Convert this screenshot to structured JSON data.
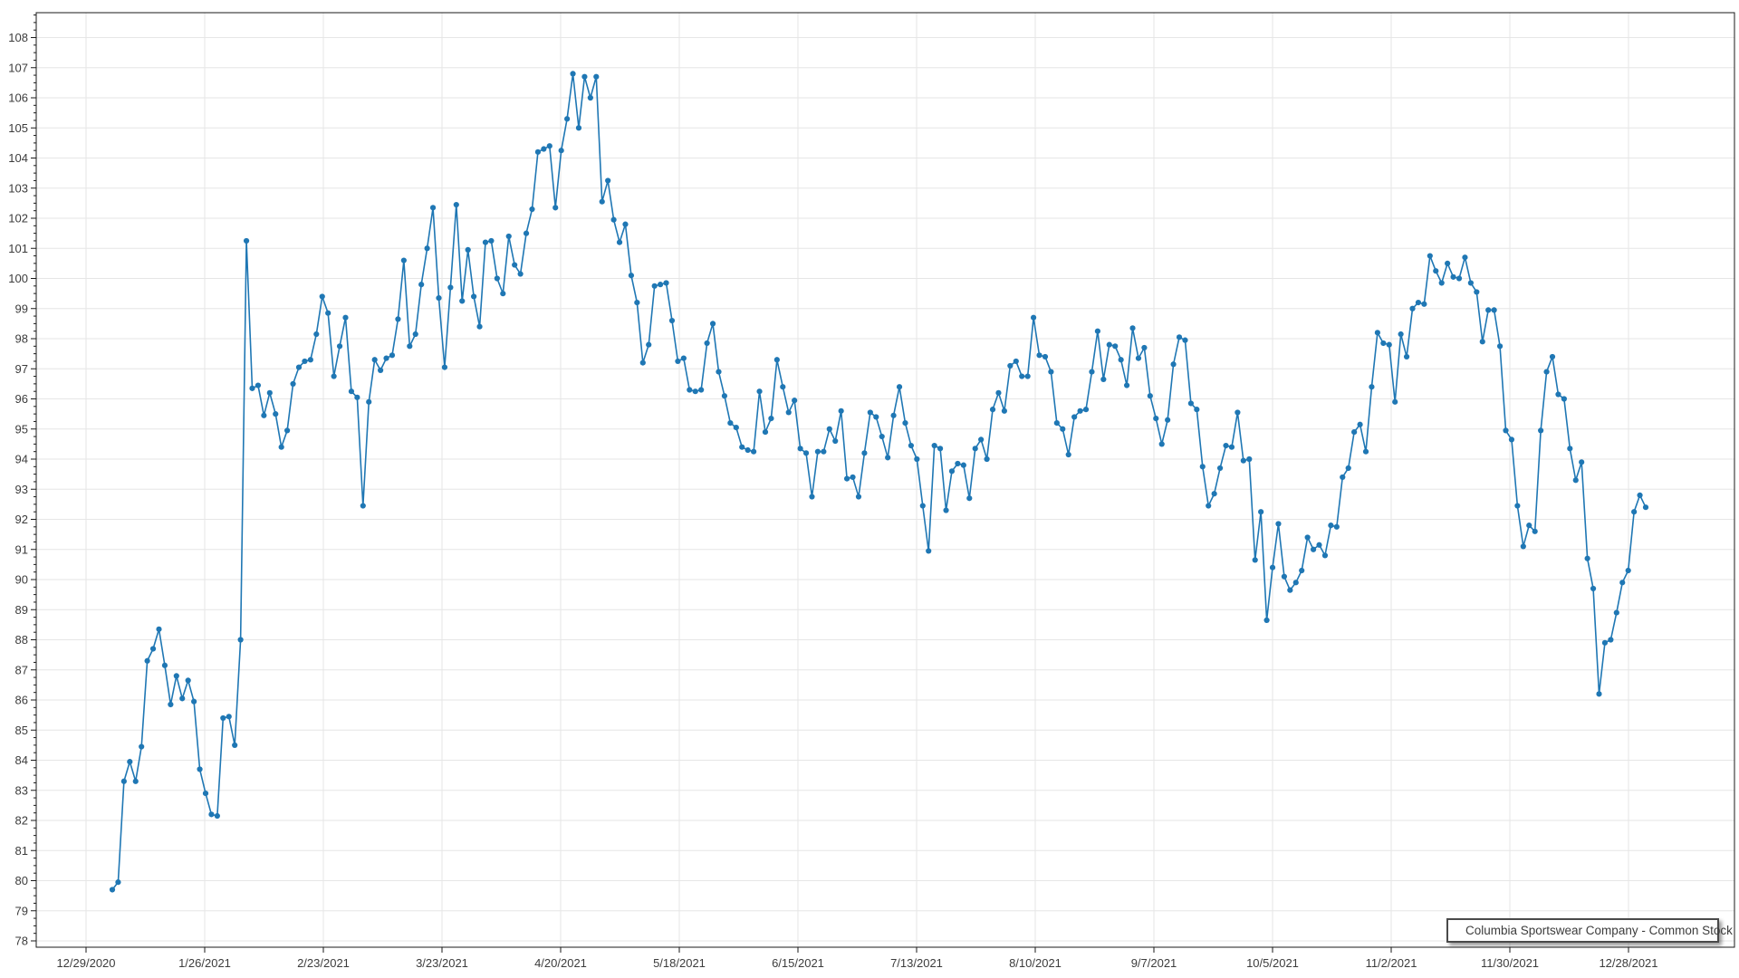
{
  "window": {
    "background": "#ffffff"
  },
  "legend": {
    "position": "bottom-right",
    "border_color": "#4a4a4a",
    "marker": "line-dot"
  },
  "chart_data": {
    "type": "line",
    "title": "",
    "xlabel": "",
    "ylabel": "",
    "grid": true,
    "legend_position": "bottom-right",
    "x_tick_labels": [
      "12/29/2020",
      "1/26/2021",
      "2/23/2021",
      "3/23/2021",
      "4/20/2021",
      "5/18/2021",
      "6/15/2021",
      "7/13/2021",
      "8/10/2021",
      "9/7/2021",
      "10/5/2021",
      "11/2/2021",
      "11/30/2021",
      "12/28/2021"
    ],
    "ylim": [
      78,
      108
    ],
    "y_tick_step": 1,
    "y_minor_tick_step": 0.25,
    "colors": {
      "line": "#1f77b4",
      "marker": "#1f77b4",
      "grid": "#e6e6e6",
      "axis": "#1a1a1a",
      "tick_text": "#3c3c3c"
    },
    "series": [
      {
        "name": "Columbia Sportswear Company - Common Stock",
        "values": [
          79.7,
          79.95,
          83.3,
          83.95,
          83.3,
          84.45,
          87.3,
          87.7,
          88.35,
          87.15,
          85.85,
          86.8,
          86.05,
          86.65,
          85.95,
          83.7,
          82.9,
          82.2,
          82.15,
          85.4,
          85.45,
          84.5,
          88.0,
          101.25,
          96.35,
          96.45,
          95.45,
          96.2,
          95.5,
          94.4,
          94.95,
          96.5,
          97.05,
          97.25,
          97.3,
          98.15,
          99.4,
          98.85,
          96.75,
          97.75,
          98.7,
          96.25,
          96.05,
          92.45,
          95.9,
          97.3,
          96.95,
          97.35,
          97.45,
          98.65,
          100.6,
          97.75,
          98.15,
          99.8,
          101.0,
          102.35,
          99.35,
          97.05,
          99.7,
          102.45,
          99.25,
          100.95,
          99.4,
          98.4,
          101.2,
          101.25,
          100.0,
          99.5,
          101.4,
          100.45,
          100.15,
          101.5,
          102.3,
          104.2,
          104.3,
          104.4,
          102.35,
          104.25,
          105.3,
          106.8,
          105.0,
          106.7,
          106.0,
          106.7,
          102.55,
          103.25,
          101.95,
          101.2,
          101.8,
          100.1,
          99.2,
          97.2,
          97.8,
          99.75,
          99.8,
          99.85,
          98.6,
          97.25,
          97.35,
          96.3,
          96.25,
          96.3,
          97.85,
          98.5,
          96.9,
          96.1,
          95.2,
          95.05,
          94.4,
          94.3,
          94.25,
          96.25,
          94.9,
          95.35,
          97.3,
          96.4,
          95.55,
          95.95,
          94.35,
          94.2,
          92.75,
          94.25,
          94.25,
          95.0,
          94.6,
          95.6,
          93.35,
          93.4,
          92.75,
          94.2,
          95.55,
          95.4,
          94.75,
          94.05,
          95.45,
          96.4,
          95.2,
          94.45,
          94.0,
          92.45,
          90.95,
          94.45,
          94.35,
          92.3,
          93.6,
          93.85,
          93.8,
          92.7,
          94.35,
          94.65,
          94.0,
          95.65,
          96.2,
          95.6,
          97.1,
          97.25,
          96.75,
          96.75,
          98.7,
          97.45,
          97.4,
          96.9,
          95.2,
          95.0,
          94.15,
          95.4,
          95.6,
          95.65,
          96.9,
          98.25,
          96.65,
          97.8,
          97.75,
          97.3,
          96.45,
          98.35,
          97.35,
          97.7,
          96.1,
          95.35,
          94.5,
          95.3,
          97.15,
          98.05,
          97.95,
          95.85,
          95.65,
          93.75,
          92.45,
          92.85,
          93.7,
          94.45,
          94.4,
          95.55,
          93.95,
          94.0,
          90.65,
          92.25,
          88.65,
          90.4,
          91.85,
          90.1,
          89.65,
          89.9,
          90.3,
          91.4,
          91.0,
          91.15,
          90.8,
          91.8,
          91.75,
          93.4,
          93.7,
          94.9,
          95.15,
          94.25,
          96.4,
          98.2,
          97.85,
          97.8,
          95.9,
          98.15,
          97.4,
          99.0,
          99.2,
          99.15,
          100.75,
          100.25,
          99.85,
          100.5,
          100.05,
          100.0,
          100.7,
          99.85,
          99.55,
          97.9,
          98.95,
          98.95,
          97.75,
          94.95,
          94.65,
          92.45,
          91.1,
          91.8,
          91.6,
          94.95,
          96.9,
          97.4,
          96.15,
          96.0,
          94.35,
          93.3,
          93.9,
          90.7,
          89.7,
          86.2,
          87.9,
          88.0,
          88.9,
          89.9,
          90.3,
          92.25,
          92.8,
          92.4
        ]
      }
    ]
  }
}
